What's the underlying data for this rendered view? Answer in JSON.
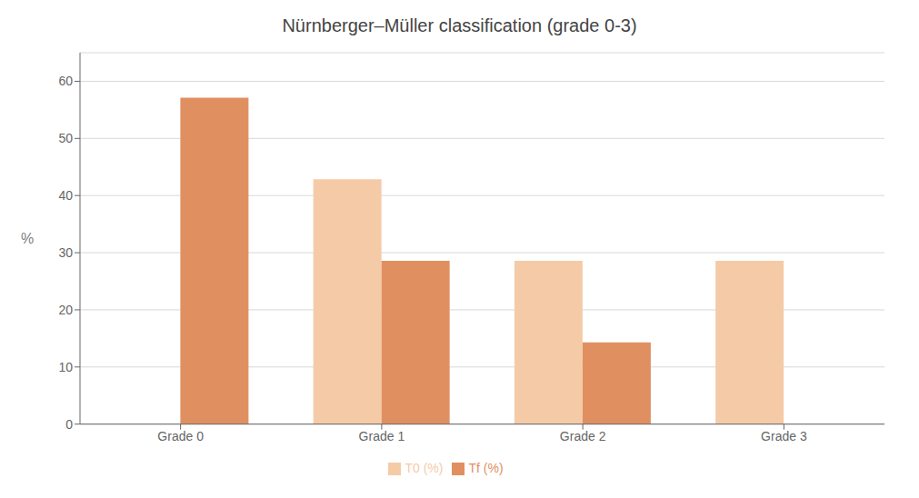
{
  "chart_data": {
    "type": "bar",
    "title": "Nürnberger–Müller classification  (grade 0-3)",
    "categories": [
      "Grade 0",
      "Grade 1",
      "Grade 2",
      "Grade 3"
    ],
    "series": [
      {
        "name": "T0 (%)",
        "color": "#f5cba7",
        "values": [
          0,
          42.86,
          28.57,
          28.57
        ]
      },
      {
        "name": "Tf (%)",
        "color": "#e09060",
        "values": [
          57.14,
          28.57,
          14.29,
          0
        ]
      }
    ],
    "ylabel": "%",
    "ylim": [
      0,
      65
    ],
    "yticks": [
      0,
      10,
      20,
      30,
      40,
      50,
      60
    ],
    "grid": true,
    "legend": "bottom"
  }
}
